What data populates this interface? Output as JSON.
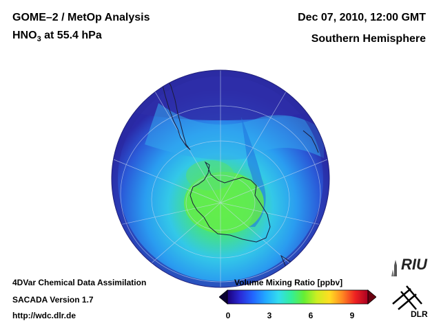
{
  "header": {
    "title": "GOME–2 / MetOp Analysis",
    "species": "HNO",
    "species_sub": "3",
    "level": " at 55.4 hPa",
    "datetime": "Dec 07, 2010, 12:00 GMT",
    "region": "Southern Hemisphere"
  },
  "footer": {
    "line1": "4DVar Chemical Data Assimilation",
    "line2": "SACADA Version 1.7",
    "line3": "http://wdc.dlr.de"
  },
  "colorbar": {
    "title": "Volume Mixing Ratio [ppbv]",
    "ticks": [
      "0",
      "3",
      "6",
      "9"
    ],
    "colors": [
      "#1a007a",
      "#2a2ad6",
      "#2266ff",
      "#22aaff",
      "#33ddee",
      "#33ee99",
      "#66ee33",
      "#ccee22",
      "#ffdd22",
      "#ff8822",
      "#ee2222",
      "#aa0022"
    ]
  },
  "logos": {
    "riu": "RIU",
    "dlr": "DLR"
  }
}
